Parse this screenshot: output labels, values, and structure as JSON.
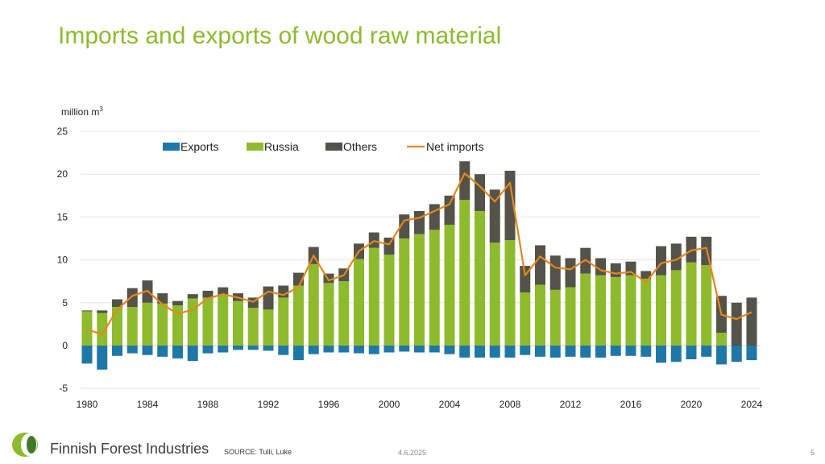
{
  "slide": {
    "title": "Imports and exports of wood raw material",
    "unit_label": "million m",
    "unit_sup": "3",
    "brand": "Finnish Forest Industries",
    "source": "SOURCE: Tulli, Luke",
    "date": "4.6.2025",
    "page_number": "5"
  },
  "colors": {
    "title": "#8dbb2d",
    "exports": "#1f77a8",
    "russia": "#8dbb2d",
    "others": "#535349",
    "net_imports": "#e8861a"
  },
  "chart_data": {
    "type": "bar",
    "stacked": true,
    "x": [
      1980,
      1981,
      1982,
      1983,
      1984,
      1985,
      1986,
      1987,
      1988,
      1989,
      1990,
      1991,
      1992,
      1993,
      1994,
      1995,
      1996,
      1997,
      1998,
      1999,
      2000,
      2001,
      2002,
      2003,
      2004,
      2005,
      2006,
      2007,
      2008,
      2009,
      2010,
      2011,
      2012,
      2013,
      2014,
      2015,
      2016,
      2017,
      2018,
      2019,
      2020,
      2021,
      2022,
      2023,
      2024
    ],
    "xticks": [
      "1980",
      "1984",
      "1988",
      "1992",
      "1996",
      "2000",
      "2004",
      "2008",
      "2012",
      "2016",
      "2020",
      "2024"
    ],
    "yticks": [
      "25",
      "20",
      "15",
      "10",
      "5",
      "0",
      "-5"
    ],
    "ylim": [
      -5,
      25
    ],
    "grid": true,
    "legend_position": "top",
    "series": [
      {
        "name": "Exports",
        "kind": "bar",
        "values": [
          -2.1,
          -2.8,
          -1.2,
          -0.9,
          -1.1,
          -1.3,
          -1.5,
          -1.8,
          -0.9,
          -0.8,
          -0.5,
          -0.5,
          -0.6,
          -1.1,
          -1.7,
          -1.0,
          -0.8,
          -0.8,
          -0.9,
          -1.0,
          -0.8,
          -0.7,
          -0.8,
          -0.8,
          -1.0,
          -1.4,
          -1.4,
          -1.4,
          -1.4,
          -1.1,
          -1.3,
          -1.4,
          -1.3,
          -1.4,
          -1.4,
          -1.2,
          -1.2,
          -1.3,
          -2.0,
          -1.9,
          -1.6,
          -1.3,
          -2.2,
          -1.9,
          -1.7
        ]
      },
      {
        "name": "Russia",
        "kind": "bar",
        "values": [
          4.0,
          3.8,
          4.5,
          4.5,
          5.0,
          4.9,
          4.7,
          5.5,
          5.6,
          5.9,
          5.2,
          4.4,
          4.2,
          5.6,
          7.0,
          9.5,
          7.3,
          7.5,
          10.1,
          11.4,
          10.6,
          12.5,
          13.0,
          13.5,
          14.1,
          17.0,
          15.7,
          12.0,
          12.3,
          6.2,
          7.1,
          6.5,
          6.8,
          8.4,
          8.2,
          8.0,
          8.2,
          7.8,
          8.2,
          8.8,
          9.7,
          9.4,
          1.5,
          0.0,
          0.0
        ]
      },
      {
        "name": "Others",
        "kind": "bar",
        "values": [
          0.1,
          0.3,
          0.9,
          2.2,
          2.6,
          1.2,
          0.5,
          0.5,
          0.8,
          0.9,
          0.9,
          1.2,
          2.7,
          1.4,
          1.5,
          2.0,
          1.1,
          1.5,
          1.8,
          1.8,
          2.0,
          2.8,
          2.7,
          3.0,
          3.4,
          4.5,
          4.3,
          6.2,
          8.1,
          3.1,
          4.6,
          4.0,
          3.4,
          3.0,
          2.0,
          1.6,
          1.6,
          0.9,
          3.4,
          3.1,
          3.0,
          3.3,
          4.3,
          5.0,
          5.6
        ]
      },
      {
        "name": "Net imports",
        "kind": "line",
        "values": [
          1.9,
          1.3,
          4.2,
          5.8,
          6.4,
          4.8,
          3.7,
          4.2,
          5.5,
          6.0,
          5.6,
          5.1,
          6.3,
          5.9,
          6.8,
          10.5,
          7.6,
          8.2,
          11.0,
          12.2,
          11.8,
          14.6,
          14.9,
          15.7,
          16.5,
          20.1,
          18.6,
          16.8,
          19.0,
          8.2,
          10.4,
          9.1,
          8.9,
          10.0,
          8.8,
          8.4,
          8.6,
          7.4,
          9.6,
          10.0,
          11.1,
          11.4,
          3.6,
          3.1,
          3.9
        ]
      }
    ]
  }
}
